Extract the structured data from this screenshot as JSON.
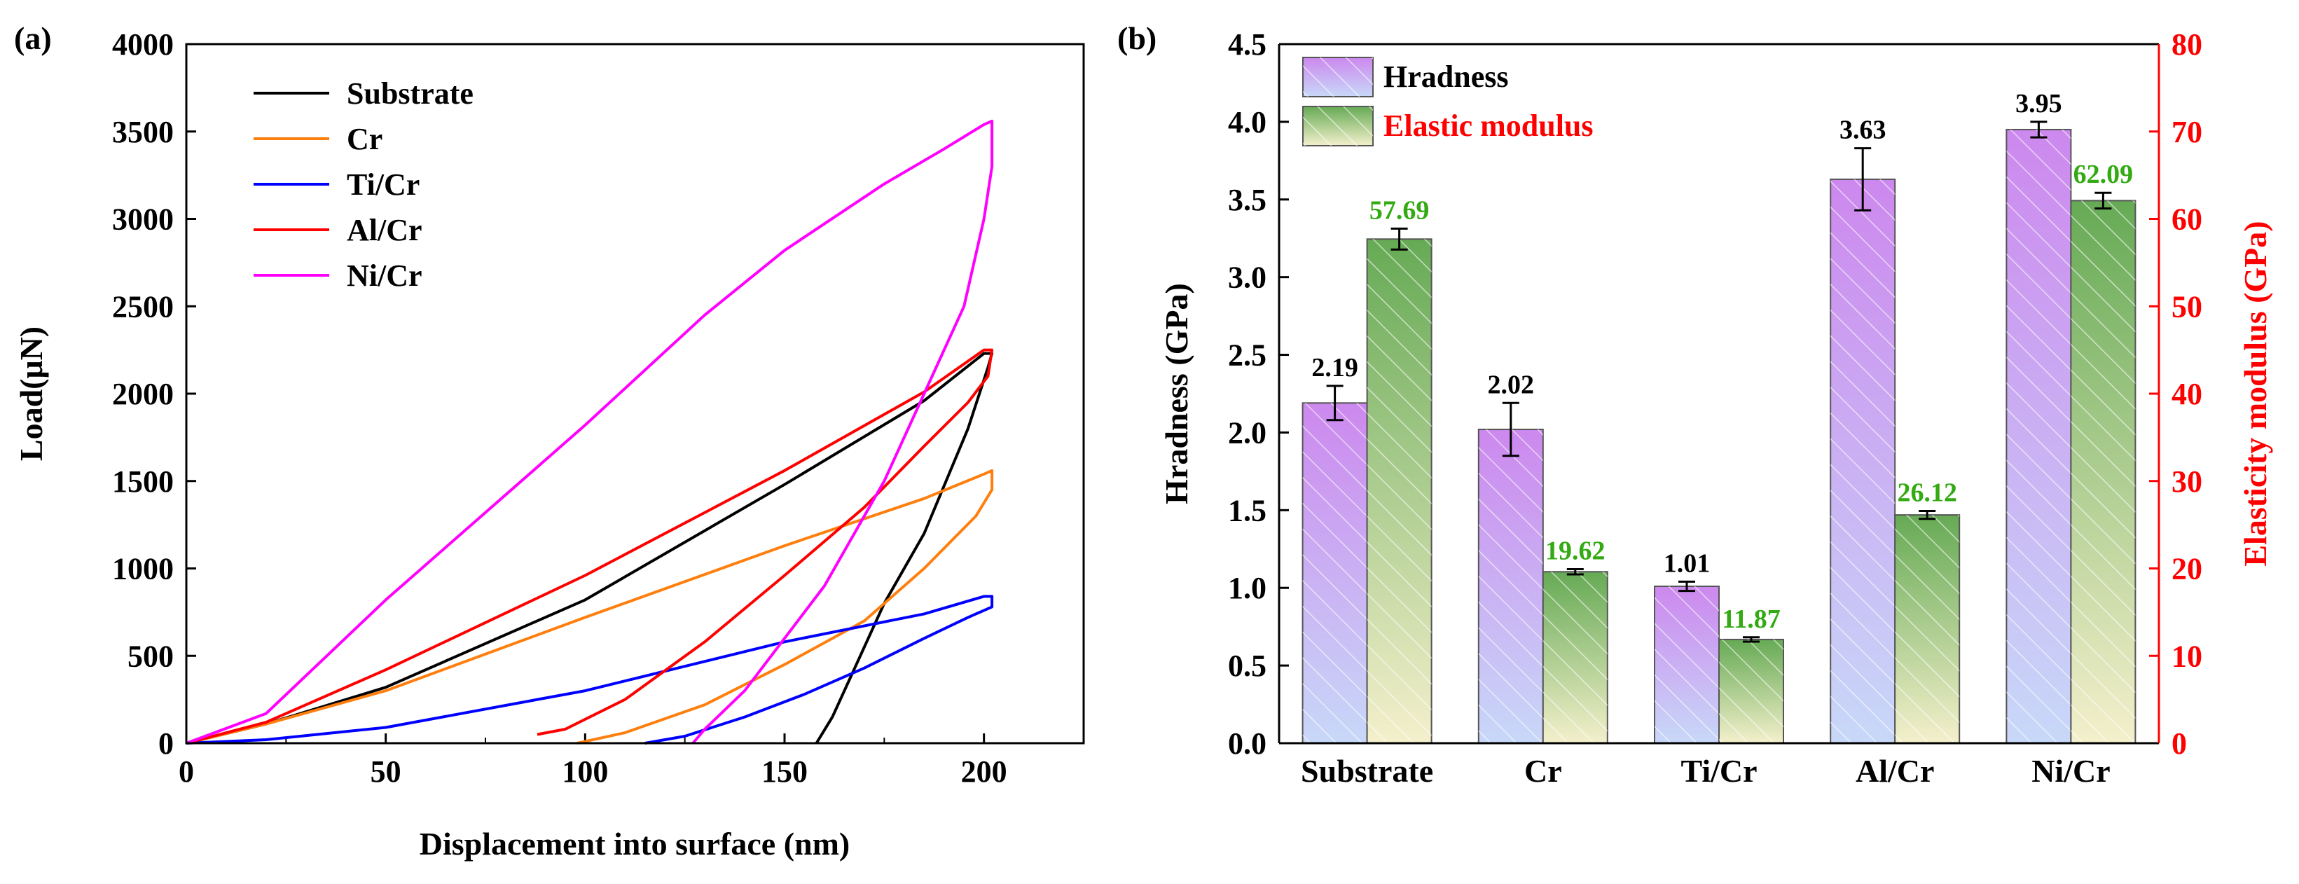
{
  "figure": {
    "panel_a_label": "(a)",
    "panel_b_label": "(b)"
  },
  "chart_data": [
    {
      "type": "line",
      "title": "",
      "xlabel": "Displacement into surface (nm)",
      "ylabel": "Load(μN)",
      "xlim": [
        0,
        225
      ],
      "ylim": [
        0,
        4000
      ],
      "xticks": [
        0,
        50,
        100,
        150,
        200
      ],
      "yticks": [
        0,
        500,
        1000,
        1500,
        2000,
        2500,
        3000,
        3500,
        4000
      ],
      "legend_position": "top-left",
      "series": [
        {
          "name": "Substrate",
          "color": "#000000",
          "loading": [
            [
              0,
              0
            ],
            [
              20,
              110
            ],
            [
              50,
              320
            ],
            [
              100,
              820
            ],
            [
              150,
              1480
            ],
            [
              185,
              1960
            ],
            [
              200,
              2230
            ]
          ],
          "unloading": [
            [
              202,
              2230
            ],
            [
              201,
              2150
            ],
            [
              196,
              1800
            ],
            [
              185,
              1200
            ],
            [
              175,
              800
            ],
            [
              168,
              450
            ],
            [
              162,
              150
            ],
            [
              158,
              0
            ]
          ]
        },
        {
          "name": "Cr",
          "color": "#ff7f0e",
          "loading": [
            [
              0,
              0
            ],
            [
              20,
              110
            ],
            [
              50,
              300
            ],
            [
              100,
              720
            ],
            [
              150,
              1130
            ],
            [
              185,
              1400
            ],
            [
              200,
              1540
            ]
          ],
          "unloading": [
            [
              202,
              1560
            ],
            [
              202,
              1450
            ],
            [
              198,
              1300
            ],
            [
              185,
              1000
            ],
            [
              170,
              700
            ],
            [
              150,
              450
            ],
            [
              130,
              220
            ],
            [
              110,
              60
            ],
            [
              98,
              0
            ]
          ]
        },
        {
          "name": "Ti/Cr",
          "color": "#0000ff",
          "loading": [
            [
              0,
              0
            ],
            [
              20,
              20
            ],
            [
              50,
              90
            ],
            [
              100,
              300
            ],
            [
              150,
              580
            ],
            [
              185,
              740
            ],
            [
              200,
              840
            ]
          ],
          "unloading": [
            [
              202,
              840
            ],
            [
              202,
              780
            ],
            [
              196,
              720
            ],
            [
              185,
              600
            ],
            [
              170,
              430
            ],
            [
              155,
              280
            ],
            [
              140,
              150
            ],
            [
              125,
              40
            ],
            [
              115,
              0
            ]
          ]
        },
        {
          "name": "Al/Cr",
          "color": "#ff0000",
          "loading": [
            [
              0,
              0
            ],
            [
              20,
              120
            ],
            [
              50,
              420
            ],
            [
              100,
              960
            ],
            [
              150,
              1560
            ],
            [
              185,
              2010
            ],
            [
              200,
              2250
            ]
          ],
          "unloading": [
            [
              202,
              2250
            ],
            [
              201,
              2100
            ],
            [
              196,
              1950
            ],
            [
              185,
              1700
            ],
            [
              170,
              1350
            ],
            [
              150,
              960
            ],
            [
              130,
              580
            ],
            [
              110,
              250
            ],
            [
              95,
              80
            ],
            [
              88,
              50
            ]
          ]
        },
        {
          "name": "Ni/Cr",
          "color": "#ff00ff",
          "loading": [
            [
              0,
              0
            ],
            [
              20,
              170
            ],
            [
              50,
              820
            ],
            [
              100,
              1820
            ],
            [
              130,
              2450
            ],
            [
              150,
              2820
            ],
            [
              175,
              3200
            ],
            [
              190,
              3400
            ],
            [
              200,
              3540
            ]
          ],
          "unloading": [
            [
              202,
              3560
            ],
            [
              202,
              3300
            ],
            [
              200,
              3000
            ],
            [
              195,
              2500
            ],
            [
              185,
              2000
            ],
            [
              175,
              1500
            ],
            [
              160,
              900
            ],
            [
              150,
              600
            ],
            [
              140,
              300
            ],
            [
              130,
              80
            ],
            [
              127,
              0
            ]
          ]
        }
      ]
    },
    {
      "type": "bar",
      "title": "",
      "xlabel": "",
      "ylabel": "Hradness (GPa)",
      "y2label": "Elasticity modulus (GPa)",
      "categories": [
        "Substrate",
        "Cr",
        "Ti/Cr",
        "Al/Cr",
        "Ni/Cr"
      ],
      "ylim": [
        0,
        4.5
      ],
      "y2lim": [
        0,
        80
      ],
      "yticks": [
        "0.0",
        "0.5",
        "1.0",
        "1.5",
        "2.0",
        "2.5",
        "3.0",
        "3.5",
        "4.0",
        "4.5"
      ],
      "y2ticks": [
        "0",
        "10",
        "20",
        "30",
        "40",
        "50",
        "60",
        "70",
        "80"
      ],
      "legend_position": "top-left",
      "series": [
        {
          "name": "Hradness",
          "axis": "left",
          "legend_color": "#000000",
          "values": [
            2.19,
            2.02,
            1.01,
            3.63,
            3.95
          ],
          "labels": [
            "2.19",
            "2.02",
            "1.01",
            "3.63",
            "3.95"
          ],
          "errors": [
            0.11,
            0.17,
            0.03,
            0.2,
            0.05
          ]
        },
        {
          "name": "Elastic modulus",
          "axis": "right",
          "legend_color": "#ff0000",
          "values": [
            57.69,
            19.62,
            11.87,
            26.12,
            62.09
          ],
          "labels": [
            "57.69",
            "19.62",
            "11.87",
            "26.12",
            "62.09"
          ],
          "errors": [
            1.2,
            0.3,
            0.25,
            0.45,
            0.9
          ]
        }
      ],
      "colors": {
        "hardness_top": "#cc88ee",
        "hardness_bottom": "#c8d8f8",
        "modulus_top": "#66aa55",
        "modulus_bottom": "#f4f0cc",
        "right_axis": "#ff0000",
        "modulus_label": "#33aa11"
      }
    }
  ]
}
